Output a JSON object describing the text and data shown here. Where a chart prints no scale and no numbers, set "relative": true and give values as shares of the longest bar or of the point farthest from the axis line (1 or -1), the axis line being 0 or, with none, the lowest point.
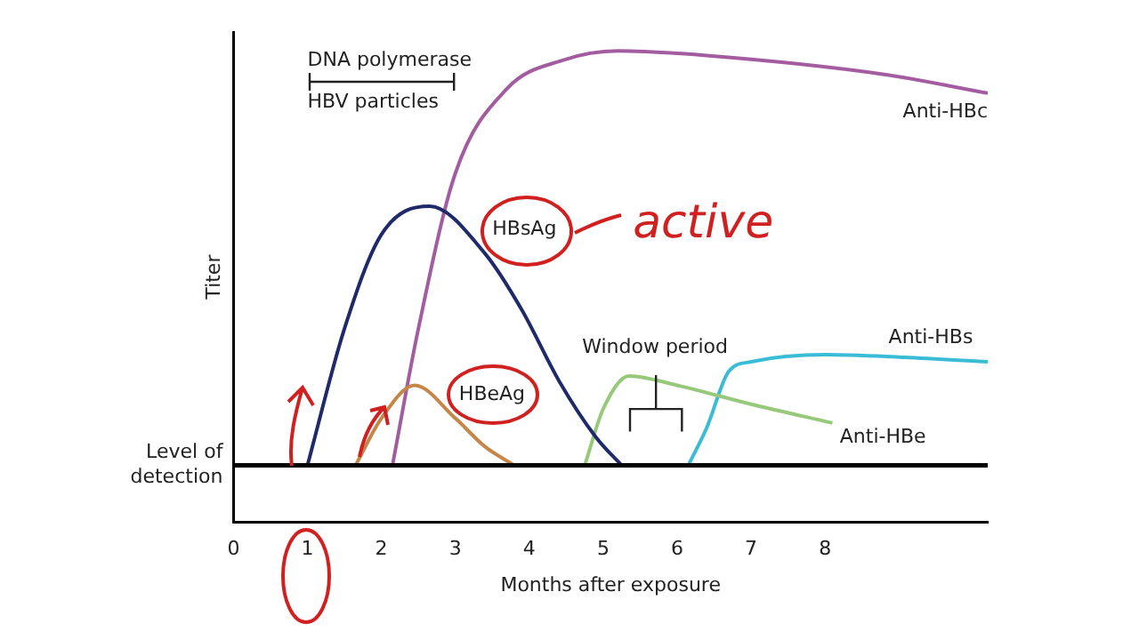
{
  "chart_data": {
    "type": "line",
    "relative": true,
    "xlabel": "Months after exposure",
    "ylabel": "Titer",
    "xlim": [
      0,
      10.2
    ],
    "xticks": [
      0,
      1,
      2,
      3,
      4,
      5,
      6,
      7,
      8
    ],
    "grid": false,
    "legend": false,
    "marker": "none",
    "line_style": "solid",
    "series": [
      {
        "name": "HBsAg",
        "color": "#1f2a6b",
        "x": [
          1,
          1.5,
          2,
          2.65,
          3.4,
          3.9,
          4.4,
          4.9,
          5.25
        ],
        "values": [
          0.12,
          0.41,
          0.61,
          0.67,
          0.57,
          0.45,
          0.3,
          0.18,
          0.12
        ]
      },
      {
        "name": "HBeAg",
        "color": "#c58748",
        "x": [
          1.65,
          2,
          2.45,
          3,
          3.4,
          3.8
        ],
        "values": [
          0.12,
          0.22,
          0.29,
          0.22,
          0.16,
          0.12
        ]
      },
      {
        "name": "Anti-HBc",
        "color": "#a35c9f",
        "x": [
          2.15,
          2.5,
          3,
          3.7,
          4.45,
          5.2,
          6.4,
          8.8,
          10.2
        ],
        "values": [
          0.12,
          0.41,
          0.74,
          0.92,
          0.98,
          1,
          0.99,
          0.95,
          0.91
        ]
      },
      {
        "name": "Anti-HBe",
        "color": "#96c97a",
        "x": [
          4.75,
          5,
          5.35,
          6,
          7,
          8.1
        ],
        "values": [
          0.12,
          0.24,
          0.31,
          0.29,
          0.25,
          0.21
        ]
      },
      {
        "name": "Anti-HBs",
        "color": "#3bbcd6",
        "x": [
          6.15,
          6.4,
          6.7,
          7,
          8,
          9,
          10.2
        ],
        "values": [
          0.12,
          0.2,
          0.32,
          0.34,
          0.355,
          0.35,
          0.34
        ]
      }
    ],
    "ref_lines": [
      {
        "axis": "y",
        "value": 0.12,
        "label": "Level of detection",
        "color": "#000000"
      }
    ],
    "annotations": [
      "DNA polymerase",
      "HBV particles",
      "Window period",
      "active"
    ]
  }
}
